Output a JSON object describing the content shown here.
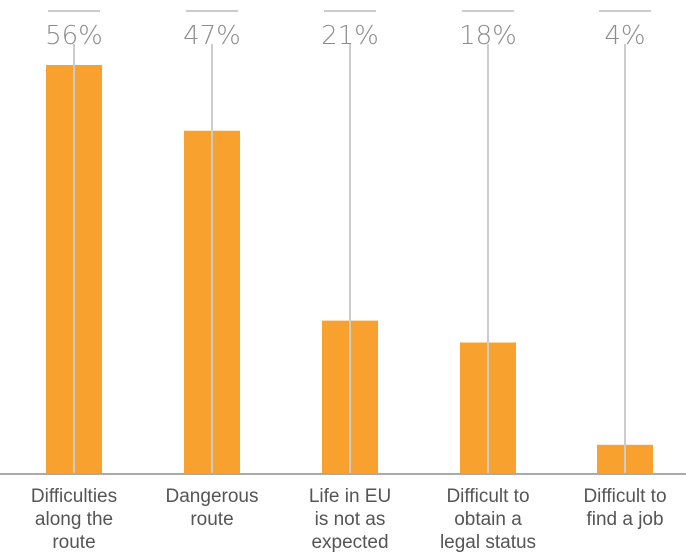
{
  "chart_data": {
    "type": "bar",
    "categories": [
      [
        "Difficulties",
        "along the",
        "route"
      ],
      [
        "Dangerous",
        "route"
      ],
      [
        "Life in EU",
        "is not as",
        "expected"
      ],
      [
        "Difficult to",
        "obtain a",
        "legal status"
      ],
      [
        "Difficult to",
        "find a job"
      ]
    ],
    "values": [
      56,
      47,
      21,
      18,
      4
    ],
    "value_labels": [
      "56%",
      "47%",
      "21%",
      "18%",
      "4%"
    ],
    "ylim": [
      0,
      56
    ],
    "title": "",
    "xlabel": "",
    "ylabel": "",
    "grid": false,
    "colors": {
      "bar": "#F9A12E",
      "guide_line": "#cccccc",
      "baseline": "#aaaaaa",
      "value_text": "#8c8c8c",
      "label_text": "#555555"
    }
  }
}
